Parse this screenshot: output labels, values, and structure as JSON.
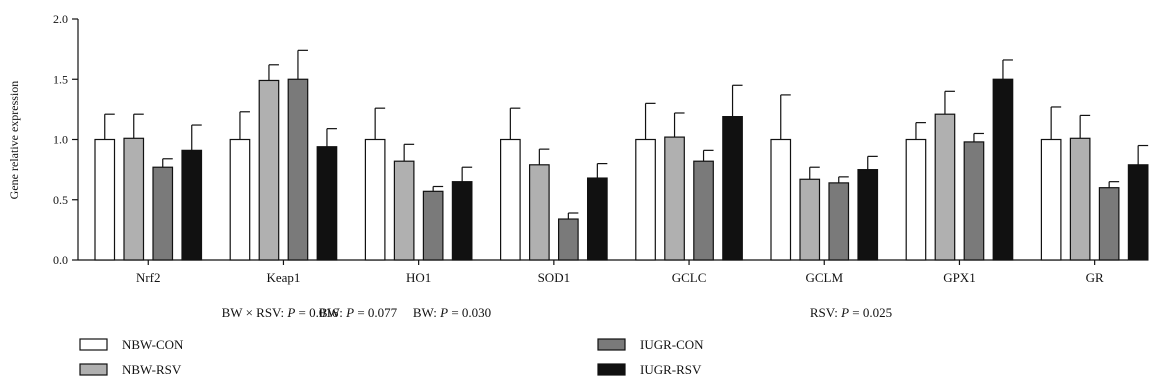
{
  "chart_data": {
    "type": "bar",
    "ylabel": "Gene relative expression",
    "ylim": [
      0,
      2.0
    ],
    "yticks": [
      "0.0",
      "0.5",
      "1.0",
      "1.5",
      "2.0"
    ],
    "categories": [
      "Nrf2",
      "Keap1",
      "HO1",
      "SOD1",
      "GCLC",
      "GCLM",
      "GPX1",
      "GR"
    ],
    "series": [
      {
        "name": "NBW-CON",
        "color": "#ffffff",
        "values": [
          1.0,
          1.0,
          1.0,
          1.0,
          1.0,
          1.0,
          1.0,
          1.0
        ],
        "errors": [
          0.21,
          0.23,
          0.26,
          0.26,
          0.3,
          0.37,
          0.14,
          0.27
        ]
      },
      {
        "name": "NBW-RSV",
        "color": "#b0b0b0",
        "values": [
          1.01,
          1.49,
          0.82,
          0.79,
          1.02,
          0.67,
          1.21,
          1.01
        ],
        "errors": [
          0.2,
          0.13,
          0.14,
          0.13,
          0.2,
          0.1,
          0.19,
          0.19
        ]
      },
      {
        "name": "IUGR-CON",
        "color": "#7a7a7a",
        "values": [
          0.77,
          1.5,
          0.57,
          0.34,
          0.82,
          0.64,
          0.98,
          0.6
        ],
        "errors": [
          0.07,
          0.24,
          0.04,
          0.05,
          0.09,
          0.05,
          0.07,
          0.05
        ]
      },
      {
        "name": "IUGR-RSV",
        "color": "#111111",
        "values": [
          0.91,
          0.94,
          0.65,
          0.68,
          1.19,
          0.75,
          1.5,
          0.79
        ],
        "errors": [
          0.21,
          0.15,
          0.12,
          0.12,
          0.26,
          0.11,
          0.16,
          0.16
        ]
      }
    ],
    "annotations": [
      {
        "prefix": "BW × RSV: ",
        "p": "P",
        "suffix": " = 0.016"
      },
      {
        "prefix": "BW: ",
        "p": "P",
        "suffix": " = 0.077"
      },
      {
        "prefix": "BW: ",
        "p": "P",
        "suffix": " = 0.030"
      },
      {
        "prefix": "RSV: ",
        "p": "P",
        "suffix": " = 0.025"
      }
    ],
    "legend": {
      "placement": "bottom-left"
    }
  }
}
